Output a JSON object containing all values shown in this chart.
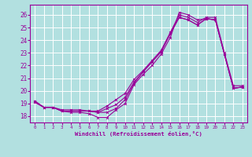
{
  "xlabel": "Windchill (Refroidissement éolien,°C)",
  "bg_color": "#b2e0e0",
  "grid_color": "#ffffff",
  "line_color": "#990099",
  "xlim": [
    -0.5,
    23.5
  ],
  "ylim": [
    17.5,
    26.8
  ],
  "yticks": [
    18,
    19,
    20,
    21,
    22,
    23,
    24,
    25,
    26
  ],
  "xticks": [
    0,
    1,
    2,
    3,
    4,
    5,
    6,
    7,
    8,
    9,
    10,
    11,
    12,
    13,
    14,
    15,
    16,
    17,
    18,
    19,
    20,
    21,
    22,
    23
  ],
  "series1_x": [
    0,
    1,
    2,
    3,
    4,
    5,
    6,
    7,
    8,
    9,
    10,
    11,
    12,
    13,
    14,
    15,
    16,
    17,
    18,
    19,
    20,
    21,
    22,
    23
  ],
  "series1_y": [
    19.2,
    18.7,
    18.7,
    18.4,
    18.3,
    18.3,
    18.2,
    17.9,
    17.9,
    18.5,
    19.0,
    20.5,
    21.3,
    22.0,
    22.9,
    24.2,
    26.2,
    26.0,
    25.6,
    25.7,
    25.6,
    22.9,
    20.2,
    20.3
  ],
  "series2_x": [
    0,
    1,
    2,
    3,
    4,
    5,
    6,
    7,
    8,
    9,
    10,
    11,
    12,
    13,
    14,
    15,
    16,
    17,
    18,
    19,
    20,
    21,
    22,
    23
  ],
  "series2_y": [
    19.2,
    18.7,
    18.7,
    18.4,
    18.4,
    18.4,
    18.4,
    18.3,
    18.3,
    18.6,
    19.3,
    20.6,
    21.5,
    22.3,
    23.1,
    24.5,
    25.8,
    25.6,
    25.2,
    25.7,
    25.6,
    22.9,
    20.2,
    20.3
  ],
  "series3_x": [
    0,
    1,
    2,
    3,
    4,
    5,
    6,
    7,
    8,
    9,
    10,
    11,
    12,
    13,
    14,
    15,
    16,
    17,
    18,
    19,
    20,
    21,
    22,
    23
  ],
  "series3_y": [
    19.1,
    18.7,
    18.7,
    18.4,
    18.4,
    18.4,
    18.4,
    18.3,
    18.6,
    18.9,
    19.5,
    20.7,
    21.5,
    22.3,
    23.1,
    24.5,
    25.8,
    25.6,
    25.2,
    25.7,
    25.6,
    22.9,
    20.2,
    20.3
  ],
  "series4_x": [
    0,
    1,
    2,
    3,
    4,
    5,
    6,
    7,
    8,
    9,
    10,
    11,
    12,
    13,
    14,
    15,
    16,
    17,
    18,
    19,
    20,
    21,
    22,
    23
  ],
  "series4_y": [
    19.1,
    18.7,
    18.7,
    18.5,
    18.5,
    18.5,
    18.4,
    18.4,
    18.8,
    19.3,
    19.8,
    20.9,
    21.6,
    22.4,
    23.2,
    24.6,
    26.0,
    25.8,
    25.4,
    25.8,
    25.8,
    23.0,
    20.4,
    20.4
  ]
}
